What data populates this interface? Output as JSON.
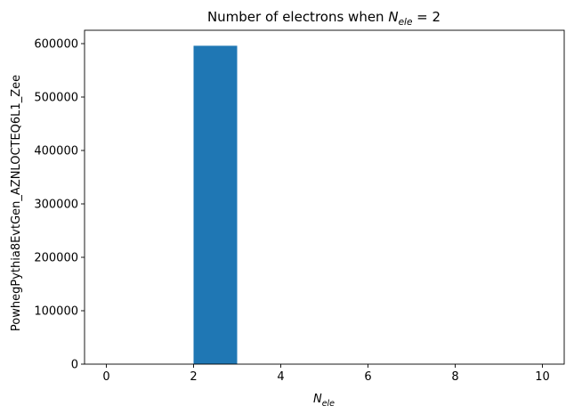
{
  "chart_data": {
    "type": "bar",
    "title_prefix": "Number of electrons when ",
    "title_math": {
      "base": "N",
      "sub": "ele",
      "suffix": " = 2"
    },
    "xlabel": {
      "base": "N",
      "sub": "ele"
    },
    "ylabel": "PowhegPythia8EvtGen_AZNLOCTEQ6L1_Zee",
    "xlim": [
      -0.5,
      10.5
    ],
    "ylim": [
      0,
      625000
    ],
    "xticks": [
      0,
      2,
      4,
      6,
      8,
      10
    ],
    "yticks": [
      0,
      100000,
      200000,
      300000,
      400000,
      500000,
      600000
    ],
    "bar_color": "#1f77b4",
    "bins": [
      {
        "x0": 0,
        "x1": 1,
        "value": 0
      },
      {
        "x0": 1,
        "x1": 2,
        "value": 0
      },
      {
        "x0": 2,
        "x1": 3,
        "value": 596000
      },
      {
        "x0": 3,
        "x1": 4,
        "value": 0
      },
      {
        "x0": 4,
        "x1": 5,
        "value": 0
      },
      {
        "x0": 5,
        "x1": 6,
        "value": 0
      },
      {
        "x0": 6,
        "x1": 7,
        "value": 0
      },
      {
        "x0": 7,
        "x1": 8,
        "value": 0
      },
      {
        "x0": 8,
        "x1": 9,
        "value": 0
      },
      {
        "x0": 9,
        "x1": 10,
        "value": 0
      }
    ],
    "grid": false,
    "legend": "none"
  }
}
